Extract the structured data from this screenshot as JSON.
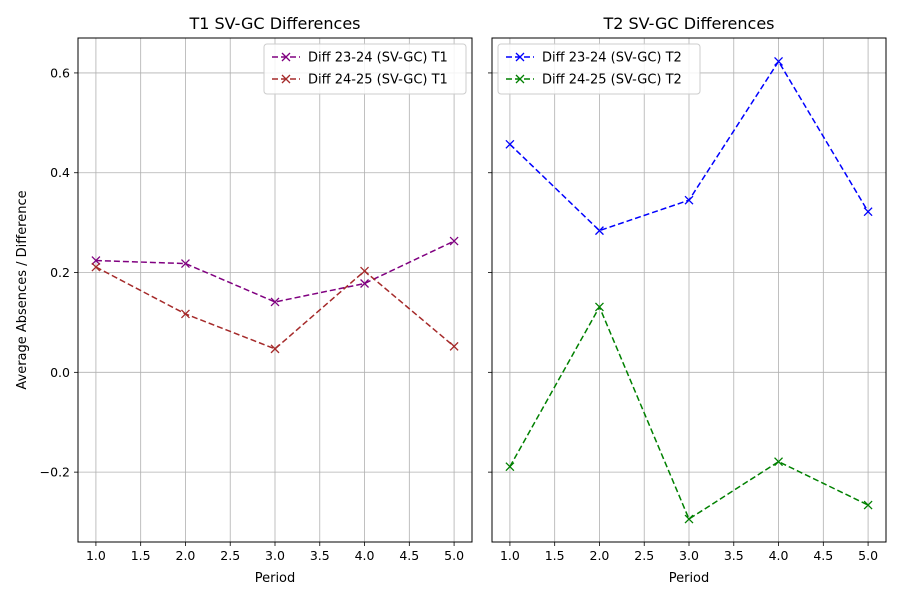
{
  "shared_ylabel": "Average Absences / Difference",
  "chart_data": [
    {
      "type": "line",
      "title": "T1 SV-GC Differences",
      "xlabel": "Period",
      "ylabel": "Average Absences / Difference",
      "x": [
        1,
        2,
        3,
        4,
        5
      ],
      "xlim": [
        0.8,
        5.2
      ],
      "ylim": [
        -0.34,
        0.67
      ],
      "xticks": [
        "1.0",
        "1.5",
        "2.0",
        "2.5",
        "3.0",
        "3.5",
        "4.0",
        "4.5",
        "5.0"
      ],
      "yticks": [
        "−0.2",
        "0.0",
        "0.2",
        "0.4",
        "0.6"
      ],
      "grid": true,
      "legend_position": "top-right",
      "series": [
        {
          "name": "Diff 23-24 (SV-GC) T1",
          "color": "#800080",
          "marker": "x",
          "linestyle": "dashed",
          "values": [
            0.224,
            0.218,
            0.141,
            0.178,
            0.263
          ]
        },
        {
          "name": "Diff 24-25 (SV-GC) T1",
          "color": "#a52a2a",
          "marker": "x",
          "linestyle": "dashed",
          "values": [
            0.211,
            0.117,
            0.047,
            0.203,
            0.052
          ]
        }
      ]
    },
    {
      "type": "line",
      "title": "T2 SV-GC Differences",
      "xlabel": "Period",
      "ylabel": "",
      "x": [
        1,
        2,
        3,
        4,
        5
      ],
      "xlim": [
        0.8,
        5.2
      ],
      "ylim": [
        -0.34,
        0.67
      ],
      "xticks": [
        "1.0",
        "1.5",
        "2.0",
        "2.5",
        "3.0",
        "3.5",
        "4.0",
        "4.5",
        "5.0"
      ],
      "yticks": [
        "−0.2",
        "0.0",
        "0.2",
        "0.4",
        "0.6"
      ],
      "grid": true,
      "legend_position": "top-left",
      "series": [
        {
          "name": "Diff 23-24 (SV-GC) T2",
          "color": "#0000ff",
          "marker": "x",
          "linestyle": "dashed",
          "values": [
            0.457,
            0.284,
            0.345,
            0.623,
            0.322
          ]
        },
        {
          "name": "Diff 24-25 (SV-GC) T2",
          "color": "#008000",
          "marker": "x",
          "linestyle": "dashed",
          "values": [
            -0.189,
            0.131,
            -0.294,
            -0.179,
            -0.266
          ]
        }
      ]
    }
  ]
}
